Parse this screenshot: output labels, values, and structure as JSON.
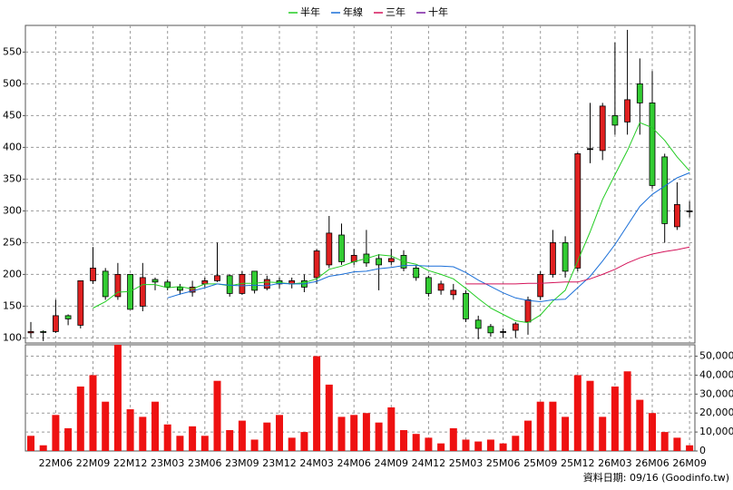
{
  "chart_data": {
    "type": "candlestick",
    "categories": [
      null,
      null,
      "22M06",
      null,
      null,
      "22M09",
      null,
      null,
      "22M12",
      null,
      null,
      "23M03",
      null,
      null,
      "23M06",
      null,
      null,
      "23M09",
      null,
      null,
      "23M12",
      null,
      null,
      "24M03",
      null,
      null,
      "24M06",
      null,
      null,
      "24M09",
      null,
      null,
      "24M12",
      null,
      null,
      "25M03",
      null,
      null,
      "25M06",
      null,
      null,
      "25M09",
      null,
      null,
      "25M12",
      null,
      null,
      "26M03",
      null,
      null,
      "26M06",
      null,
      null,
      "26M09"
    ],
    "open": [
      108,
      110,
      110,
      135,
      120,
      190,
      205,
      165,
      200,
      150,
      192,
      188,
      180,
      172,
      185,
      190,
      198,
      170,
      205,
      178,
      190,
      185,
      190,
      195,
      215,
      262,
      220,
      232,
      225,
      220,
      230,
      210,
      195,
      175,
      168,
      170,
      128,
      118,
      110,
      112,
      125,
      165,
      200,
      250,
      210,
      398,
      395,
      450,
      440,
      500,
      470,
      385,
      275,
      300
    ],
    "high": [
      125,
      112,
      160,
      137,
      190,
      243,
      210,
      218,
      200,
      218,
      195,
      192,
      185,
      190,
      195,
      250,
      200,
      205,
      205,
      198,
      195,
      195,
      200,
      240,
      292,
      280,
      240,
      270,
      232,
      240,
      238,
      215,
      198,
      190,
      185,
      175,
      135,
      122,
      115,
      125,
      165,
      205,
      270,
      260,
      392,
      470,
      470,
      565,
      585,
      540,
      520,
      390,
      345,
      315
    ],
    "low": [
      100,
      95,
      108,
      120,
      115,
      185,
      160,
      160,
      145,
      142,
      175,
      175,
      168,
      165,
      180,
      188,
      165,
      168,
      170,
      175,
      178,
      178,
      172,
      185,
      210,
      215,
      215,
      212,
      175,
      215,
      205,
      190,
      165,
      168,
      160,
      125,
      98,
      102,
      100,
      100,
      105,
      160,
      195,
      195,
      205,
      375,
      380,
      420,
      420,
      420,
      335,
      250,
      270,
      290
    ],
    "close": [
      110,
      109,
      135,
      130,
      190,
      210,
      165,
      200,
      145,
      195,
      188,
      180,
      175,
      180,
      190,
      198,
      170,
      200,
      175,
      192,
      185,
      190,
      180,
      237,
      265,
      220,
      230,
      218,
      215,
      225,
      210,
      195,
      170,
      185,
      175,
      130,
      115,
      108,
      110,
      122,
      160,
      200,
      250,
      205,
      390,
      398,
      465,
      435,
      475,
      470,
      340,
      280,
      310,
      300
    ],
    "up_color": "#e02020",
    "down_color": "#33cc33",
    "volume": [
      8000,
      3000,
      19000,
      12000,
      34000,
      40000,
      26000,
      56000,
      22000,
      18000,
      26000,
      14000,
      8000,
      13000,
      8000,
      37000,
      11000,
      16000,
      6000,
      15000,
      19000,
      7000,
      10000,
      50000,
      35000,
      18000,
      19000,
      20000,
      15000,
      23000,
      11000,
      9000,
      7000,
      4000,
      12000,
      6000,
      5000,
      6000,
      4000,
      8000,
      16000,
      26000,
      26000,
      18000,
      40000,
      37000,
      18000,
      34000,
      42000,
      27000,
      20000,
      10000,
      7000,
      3000
    ],
    "volume_color": "#ee1111",
    "series": [
      {
        "name": "半年",
        "color": "#22cc22",
        "values": [
          null,
          null,
          null,
          null,
          null,
          147,
          157,
          172,
          173,
          184,
          184,
          179,
          181,
          177,
          185,
          185,
          182,
          186,
          186,
          188,
          187,
          185,
          187,
          193,
          208,
          213,
          220,
          225,
          231,
          229,
          220,
          216,
          206,
          200,
          193,
          178,
          162,
          147,
          137,
          127,
          124,
          136,
          158,
          175,
          221,
          267,
          318,
          357,
          395,
          439,
          431,
          411,
          385,
          363
        ]
      },
      {
        "name": "年線",
        "color": "#1a6fd8",
        "values": [
          null,
          null,
          null,
          null,
          null,
          null,
          null,
          null,
          null,
          null,
          null,
          163,
          169,
          174,
          179,
          185,
          183,
          182,
          183,
          182,
          186,
          185,
          185,
          189,
          197,
          200,
          204,
          205,
          209,
          211,
          214,
          214,
          213,
          213,
          212,
          203,
          191,
          181,
          171,
          163,
          159,
          157,
          160,
          161,
          179,
          197,
          221,
          247,
          277,
          307,
          326,
          339,
          352,
          360
        ]
      },
      {
        "name": "三年",
        "color": "#d4145a",
        "values": [
          null,
          null,
          null,
          null,
          null,
          null,
          null,
          null,
          null,
          null,
          null,
          null,
          null,
          null,
          null,
          null,
          null,
          null,
          null,
          null,
          null,
          null,
          null,
          null,
          null,
          null,
          null,
          null,
          null,
          null,
          null,
          null,
          null,
          null,
          null,
          185,
          185,
          185,
          185,
          185,
          186,
          186,
          187,
          188,
          188,
          193,
          200,
          208,
          218,
          226,
          232,
          236,
          239,
          243
        ]
      },
      {
        "name": "十年",
        "color": "#7a1fa2",
        "values": [
          null,
          null,
          null,
          null,
          null,
          null,
          null,
          null,
          null,
          null,
          null,
          null,
          null,
          null,
          null,
          null,
          null,
          null,
          null,
          null,
          null,
          null,
          null,
          null,
          null,
          null,
          null,
          null,
          null,
          null,
          null,
          null,
          null,
          null,
          null,
          null,
          null,
          null,
          null,
          null,
          null,
          null,
          null,
          null,
          null,
          null,
          null,
          null,
          null,
          null,
          null,
          null,
          null,
          null
        ]
      }
    ],
    "ylim": [
      92,
      592
    ],
    "yticks": [
      100,
      150,
      200,
      250,
      300,
      350,
      400,
      450,
      500,
      550
    ],
    "y2lim": [
      0,
      56000
    ],
    "y2ticks": [
      0,
      {
        "value": 10000,
        "label": "10,000"
      },
      {
        "value": 20000,
        "label": "20,000"
      },
      {
        "value": 30000,
        "label": "30,000"
      },
      {
        "value": 40000,
        "label": "40,000"
      },
      {
        "value": 50000,
        "label": "50,000"
      }
    ],
    "grid": true,
    "note": "資料日期: 09/16 (Goodinfo.tw)"
  }
}
